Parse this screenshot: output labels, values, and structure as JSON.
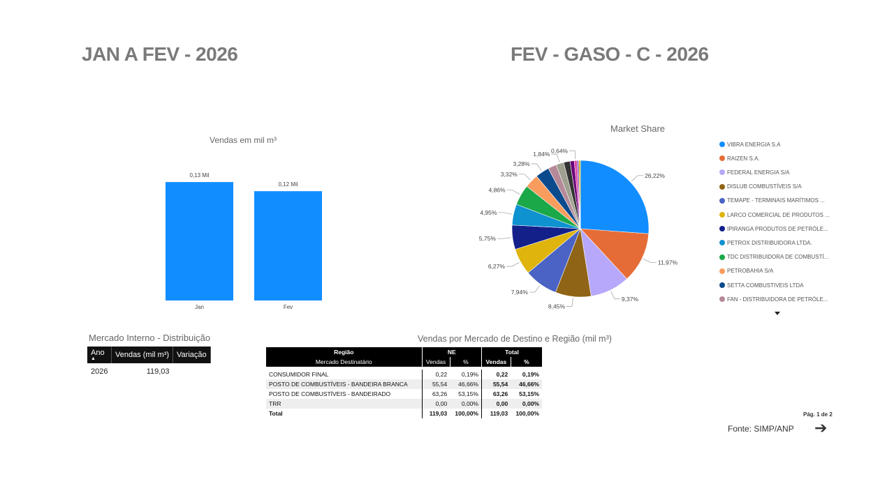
{
  "headers": {
    "left": "JAN A FEV - 2026",
    "right": "FEV  - GASO - C - 2026"
  },
  "bar_chart": {
    "title": "Vendas  em mil m³",
    "bar_color": "#118DFF"
  },
  "pie_chart": {
    "title": "Market Share"
  },
  "legend": {
    "items": [
      {
        "label": "VIBRA ENERGIA S.A",
        "color": "#118DFF"
      },
      {
        "label": "RAIZEN S.A.",
        "color": "#E66C37"
      },
      {
        "label": "FEDERAL ENERGIA S/A",
        "color": "#B7A8FB"
      },
      {
        "label": "DISLUB COMBUSTÍVEIS S/A",
        "color": "#8F6416"
      },
      {
        "label": "TEMAPE - TERMINAIS MARÍTIMOS ...",
        "color": "#4A63C4"
      },
      {
        "label": "LARCO COMERCIAL DE PRODUTOS ...",
        "color": "#DEB40D"
      },
      {
        "label": "IPIRANGA PRODUTOS DE PETRÓLE...",
        "color": "#13208A"
      },
      {
        "label": "PETROX DISTRIBUIDORA LTDA.",
        "color": "#0F92D0"
      },
      {
        "label": "TDC DISTRIBUIDORA DE COMBUSTÍ...",
        "color": "#1BA848"
      },
      {
        "label": "PETROBAHIA S/A",
        "color": "#F89D5E"
      },
      {
        "label": "SETTA COMBUSTIVEIS LTDA",
        "color": "#0B4A8D"
      },
      {
        "label": "FAN - DISTRIBUIDORA DE PETRÓLE...",
        "color": "#B58A98"
      }
    ],
    "more_icon": "caret-down-icon"
  },
  "chart_data": [
    {
      "type": "bar",
      "title": "Vendas  em mil m³",
      "categories": [
        "Jan",
        "Fev"
      ],
      "values": [
        0.13,
        0.12
      ],
      "data_labels": [
        "0,13 Mil",
        "0,12 Mil"
      ],
      "ylim": [
        0,
        0.15
      ]
    },
    {
      "type": "pie",
      "title": "Market Share",
      "slices": [
        {
          "label": "26,22%",
          "value": 26.22,
          "color": "#118DFF"
        },
        {
          "label": "11,97%",
          "value": 11.97,
          "color": "#E66C37"
        },
        {
          "label": "9,37%",
          "value": 9.37,
          "color": "#B7A8FB"
        },
        {
          "label": "8,45%",
          "value": 8.45,
          "color": "#8F6416"
        },
        {
          "label": "7,94%",
          "value": 7.94,
          "color": "#4A63C4"
        },
        {
          "label": "6,27%",
          "value": 6.27,
          "color": "#DEB40D"
        },
        {
          "label": "5,75%",
          "value": 5.75,
          "color": "#13208A"
        },
        {
          "label": "4,95%",
          "value": 4.95,
          "color": "#0F92D0"
        },
        {
          "label": "4,86%",
          "value": 4.86,
          "color": "#1BA848"
        },
        {
          "label": "3,32%",
          "value": 3.32,
          "color": "#F89D5E"
        },
        {
          "label": "3,28%",
          "value": 3.28,
          "color": "#0B4A8D"
        },
        {
          "label": "",
          "value": 2.0,
          "color": "#B58A98"
        },
        {
          "label": "1,84%",
          "value": 1.84,
          "color": "#A0A090"
        },
        {
          "label": "",
          "value": 1.5,
          "color": "#333333"
        },
        {
          "label": "",
          "value": 1.0,
          "color": "#6B007B"
        },
        {
          "label": "0,64%",
          "value": 0.64,
          "color": "#E044A7"
        },
        {
          "label": "",
          "value": 0.4,
          "color": "#744EC2"
        },
        {
          "label": "",
          "value": 0.4,
          "color": "#D9B300"
        }
      ]
    }
  ],
  "mercado_interno": {
    "title": "Mercado Interno - Distribuição",
    "columns": [
      "Ano",
      "Vendas (mil m³)",
      "Variação"
    ],
    "row": {
      "ano": "2026",
      "vendas": "119,03",
      "variacao": ""
    }
  },
  "vendas_table": {
    "title": "Vendas por Mercado de Destino e Região (mil m³)",
    "header1": {
      "regiao": "Região",
      "ne": "NE",
      "total": "Total"
    },
    "header2": {
      "mercado": "Mercado Destinatário",
      "vendas": "Vendas",
      "pct": "%",
      "vendas_t": "Vendas",
      "pct_t": "%"
    },
    "rows": [
      {
        "name": "CONSUMIDOR FINAL",
        "v": "0,22",
        "p": "0,19%",
        "vt": "0,22",
        "pt": "0,19%"
      },
      {
        "name": "POSTO DE COMBUSTÍVEIS - BANDEIRA BRANCA",
        "v": "55,54",
        "p": "46,66%",
        "vt": "55,54",
        "pt": "46,66%"
      },
      {
        "name": "POSTO DE COMBUSTÍVEIS - BANDEIRADO",
        "v": "63,26",
        "p": "53,15%",
        "vt": "63,26",
        "pt": "53,15%"
      },
      {
        "name": "TRR",
        "v": "0,00",
        "p": "0,00%",
        "vt": "0,00",
        "pt": "0,00%"
      }
    ],
    "total": {
      "name": "Total",
      "v": "119,03",
      "p": "100,00%",
      "vt": "119,03",
      "pt": "100,00%"
    }
  },
  "footer": {
    "page": "Pág. 1 de 2",
    "source": "Fonte: SIMP/ANP",
    "next_icon": "arrow-right-icon"
  }
}
